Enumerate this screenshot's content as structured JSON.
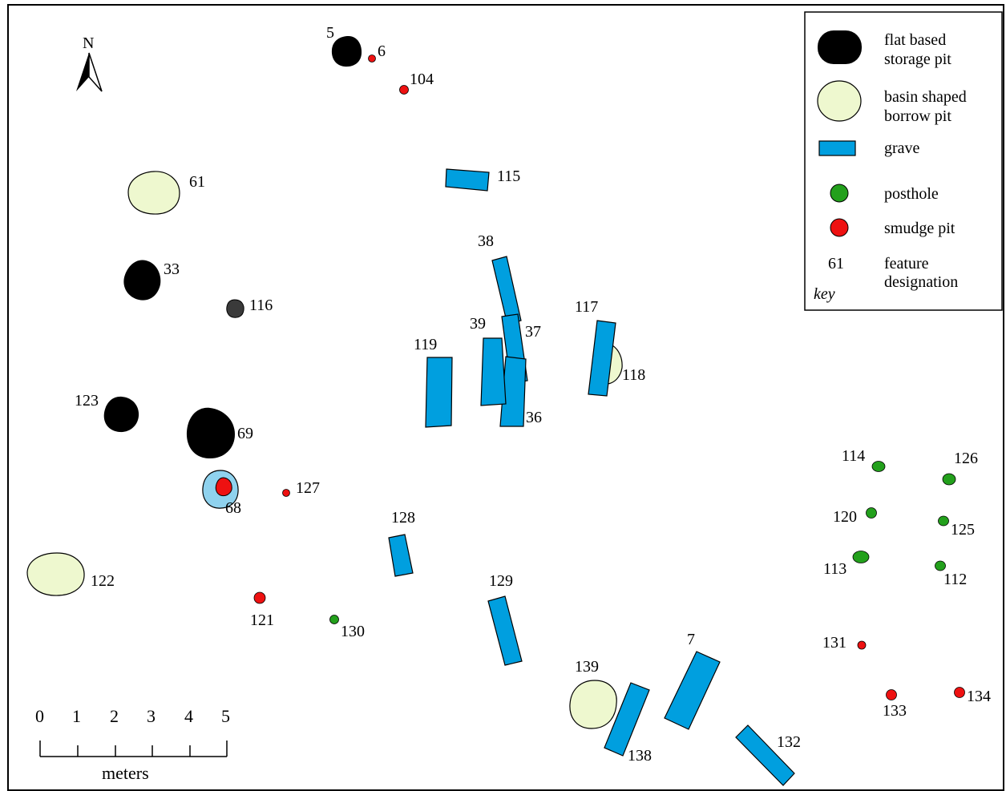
{
  "colors": {
    "storage_pit": "#000000",
    "borrow_pit": "#eef8cf",
    "grave": "#009fdf",
    "posthole": "#23a01c",
    "smudge_pit": "#ee1111",
    "feature_68_fill": "#8fd2ee",
    "feature_116_fill": "#3a3a3a"
  },
  "north_arrow": {
    "label": "N",
    "icon": "north-arrow-icon"
  },
  "legend": {
    "items": [
      {
        "type": "storage_pit",
        "label_line1": "flat based",
        "label_line2": "storage pit"
      },
      {
        "type": "borrow_pit",
        "label_line1": "basin shaped",
        "label_line2": "borrow pit"
      },
      {
        "type": "grave",
        "label_line1": "grave",
        "label_line2": ""
      },
      {
        "type": "posthole",
        "label_line1": "posthole",
        "label_line2": ""
      },
      {
        "type": "smudge_pit",
        "label_line1": "smudge pit",
        "label_line2": ""
      },
      {
        "type": "designation",
        "sample": "61",
        "label_line1": "feature",
        "label_line2": "designation"
      }
    ],
    "key_label": "key"
  },
  "scale_bar": {
    "ticks": [
      "0",
      "1",
      "2",
      "3",
      "4",
      "5"
    ],
    "unit": "meters"
  },
  "features": [
    {
      "id": "5",
      "type": "storage_pit"
    },
    {
      "id": "6",
      "type": "smudge_pit"
    },
    {
      "id": "104",
      "type": "smudge_pit"
    },
    {
      "id": "115",
      "type": "grave"
    },
    {
      "id": "61",
      "type": "borrow_pit"
    },
    {
      "id": "38",
      "type": "grave"
    },
    {
      "id": "33",
      "type": "storage_pit"
    },
    {
      "id": "116",
      "type": "storage_pit"
    },
    {
      "id": "117",
      "type": "grave"
    },
    {
      "id": "118",
      "type": "borrow_pit"
    },
    {
      "id": "39",
      "type": "grave"
    },
    {
      "id": "37",
      "type": "grave"
    },
    {
      "id": "119",
      "type": "grave"
    },
    {
      "id": "36",
      "type": "grave"
    },
    {
      "id": "123",
      "type": "storage_pit"
    },
    {
      "id": "69",
      "type": "storage_pit"
    },
    {
      "id": "68",
      "type": "smudge_pit"
    },
    {
      "id": "127",
      "type": "smudge_pit"
    },
    {
      "id": "128",
      "type": "grave"
    },
    {
      "id": "122",
      "type": "borrow_pit"
    },
    {
      "id": "121",
      "type": "smudge_pit"
    },
    {
      "id": "130",
      "type": "posthole"
    },
    {
      "id": "129",
      "type": "grave"
    },
    {
      "id": "139",
      "type": "borrow_pit"
    },
    {
      "id": "138",
      "type": "grave"
    },
    {
      "id": "7",
      "type": "grave"
    },
    {
      "id": "132",
      "type": "grave"
    },
    {
      "id": "114",
      "type": "posthole"
    },
    {
      "id": "126",
      "type": "posthole"
    },
    {
      "id": "120",
      "type": "posthole"
    },
    {
      "id": "125",
      "type": "posthole"
    },
    {
      "id": "113",
      "type": "posthole"
    },
    {
      "id": "112",
      "type": "posthole"
    },
    {
      "id": "131",
      "type": "smudge_pit"
    },
    {
      "id": "133",
      "type": "smudge_pit"
    },
    {
      "id": "134",
      "type": "smudge_pit"
    }
  ]
}
